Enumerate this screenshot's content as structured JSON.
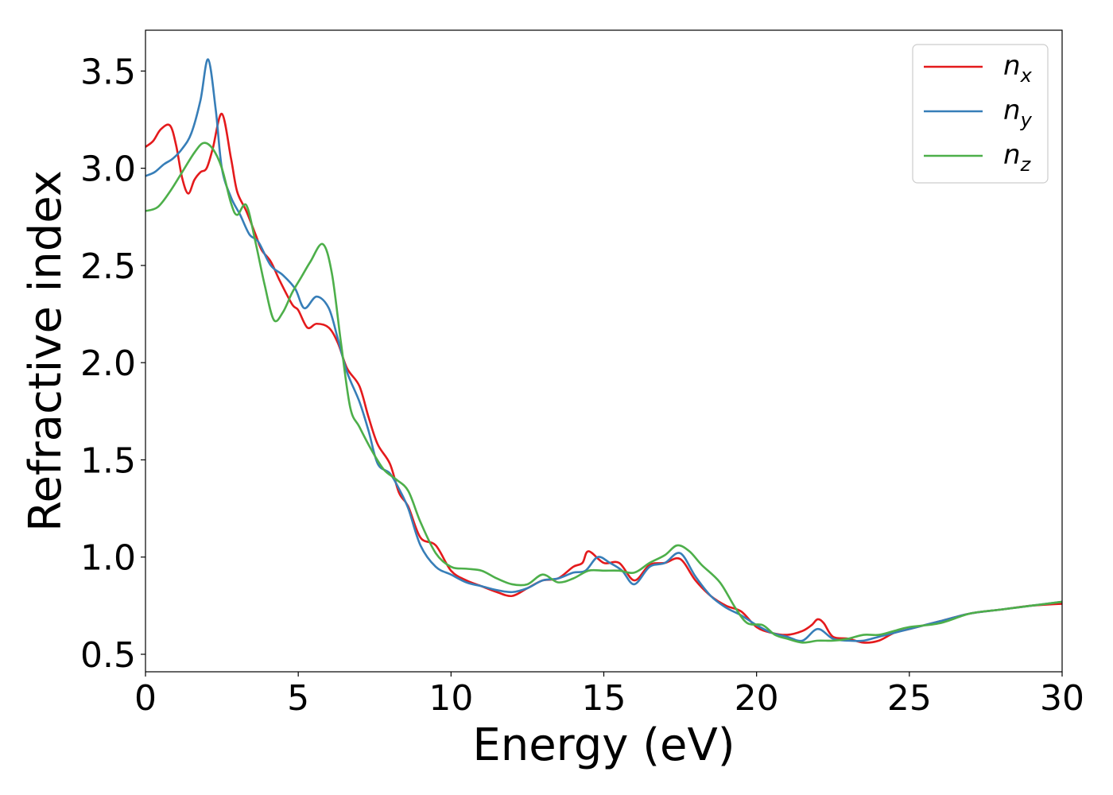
{
  "chart_data": {
    "type": "line",
    "title": "",
    "xlabel": "Energy (eV)",
    "ylabel": "Refractive index",
    "xlim": [
      0,
      30
    ],
    "ylim": [
      0.41,
      3.71
    ],
    "xticks": [
      0,
      5,
      10,
      15,
      20,
      25,
      30
    ],
    "xtick_labels": [
      "0",
      "5",
      "10",
      "15",
      "20",
      "25",
      "30"
    ],
    "yticks": [
      0.5,
      1.0,
      1.5,
      2.0,
      2.5,
      3.0,
      3.5
    ],
    "ytick_labels": [
      "0.5",
      "1.0",
      "1.5",
      "2.0",
      "2.5",
      "3.0",
      "3.5"
    ],
    "grid": false,
    "legend_position": "top-right",
    "series": [
      {
        "name": "n",
        "subscript": "x",
        "color": "#e41a1c",
        "points": [
          [
            0,
            3.11
          ],
          [
            0.25,
            3.14
          ],
          [
            0.5,
            3.2
          ],
          [
            0.8,
            3.22
          ],
          [
            1.0,
            3.12
          ],
          [
            1.2,
            2.95
          ],
          [
            1.4,
            2.87
          ],
          [
            1.6,
            2.94
          ],
          [
            1.8,
            2.98
          ],
          [
            2.0,
            3.0
          ],
          [
            2.2,
            3.1
          ],
          [
            2.5,
            3.28
          ],
          [
            2.8,
            3.05
          ],
          [
            3.0,
            2.88
          ],
          [
            3.3,
            2.78
          ],
          [
            3.6,
            2.66
          ],
          [
            3.8,
            2.58
          ],
          [
            4.1,
            2.52
          ],
          [
            4.4,
            2.42
          ],
          [
            4.8,
            2.3
          ],
          [
            5.0,
            2.27
          ],
          [
            5.3,
            2.18
          ],
          [
            5.6,
            2.2
          ],
          [
            6.0,
            2.18
          ],
          [
            6.3,
            2.1
          ],
          [
            6.6,
            1.97
          ],
          [
            7.0,
            1.88
          ],
          [
            7.3,
            1.72
          ],
          [
            7.6,
            1.58
          ],
          [
            8.0,
            1.48
          ],
          [
            8.3,
            1.33
          ],
          [
            8.6,
            1.26
          ],
          [
            9.0,
            1.1
          ],
          [
            9.5,
            1.06
          ],
          [
            10.0,
            0.93
          ],
          [
            10.5,
            0.88
          ],
          [
            11.0,
            0.85
          ],
          [
            11.5,
            0.82
          ],
          [
            12.0,
            0.8
          ],
          [
            12.5,
            0.84
          ],
          [
            13.0,
            0.88
          ],
          [
            13.5,
            0.89
          ],
          [
            14.0,
            0.95
          ],
          [
            14.3,
            0.97
          ],
          [
            14.5,
            1.03
          ],
          [
            15.0,
            0.97
          ],
          [
            15.5,
            0.97
          ],
          [
            16.0,
            0.88
          ],
          [
            16.5,
            0.96
          ],
          [
            17.0,
            0.97
          ],
          [
            17.5,
            0.99
          ],
          [
            18.0,
            0.88
          ],
          [
            18.5,
            0.8
          ],
          [
            19.0,
            0.75
          ],
          [
            19.5,
            0.72
          ],
          [
            20.0,
            0.64
          ],
          [
            20.5,
            0.61
          ],
          [
            21.0,
            0.6
          ],
          [
            21.5,
            0.62
          ],
          [
            21.8,
            0.65
          ],
          [
            22.0,
            0.68
          ],
          [
            22.2,
            0.66
          ],
          [
            22.5,
            0.59
          ],
          [
            23.0,
            0.58
          ],
          [
            23.5,
            0.56
          ],
          [
            24.0,
            0.57
          ],
          [
            24.5,
            0.61
          ],
          [
            25.0,
            0.63
          ],
          [
            26.0,
            0.67
          ],
          [
            27.0,
            0.71
          ],
          [
            28.0,
            0.73
          ],
          [
            29.0,
            0.75
          ],
          [
            30.0,
            0.76
          ]
        ]
      },
      {
        "name": "n",
        "subscript": "y",
        "color": "#377eb8",
        "points": [
          [
            0,
            2.96
          ],
          [
            0.3,
            2.98
          ],
          [
            0.6,
            3.02
          ],
          [
            0.9,
            3.05
          ],
          [
            1.2,
            3.1
          ],
          [
            1.5,
            3.18
          ],
          [
            1.8,
            3.35
          ],
          [
            2.05,
            3.56
          ],
          [
            2.3,
            3.3
          ],
          [
            2.5,
            3.0
          ],
          [
            2.8,
            2.85
          ],
          [
            3.1,
            2.76
          ],
          [
            3.4,
            2.66
          ],
          [
            3.7,
            2.62
          ],
          [
            4.1,
            2.5
          ],
          [
            4.5,
            2.45
          ],
          [
            4.9,
            2.38
          ],
          [
            5.2,
            2.28
          ],
          [
            5.6,
            2.34
          ],
          [
            6.0,
            2.28
          ],
          [
            6.3,
            2.12
          ],
          [
            6.6,
            1.95
          ],
          [
            7.0,
            1.8
          ],
          [
            7.3,
            1.65
          ],
          [
            7.6,
            1.48
          ],
          [
            8.0,
            1.43
          ],
          [
            8.3,
            1.35
          ],
          [
            8.6,
            1.25
          ],
          [
            9.0,
            1.06
          ],
          [
            9.5,
            0.95
          ],
          [
            10.0,
            0.91
          ],
          [
            10.5,
            0.87
          ],
          [
            11.0,
            0.85
          ],
          [
            11.5,
            0.83
          ],
          [
            12.0,
            0.82
          ],
          [
            12.5,
            0.84
          ],
          [
            13.0,
            0.88
          ],
          [
            13.5,
            0.89
          ],
          [
            14.0,
            0.92
          ],
          [
            14.4,
            0.93
          ],
          [
            14.8,
            1.0
          ],
          [
            15.2,
            0.97
          ],
          [
            15.6,
            0.93
          ],
          [
            16.0,
            0.86
          ],
          [
            16.5,
            0.95
          ],
          [
            17.0,
            0.97
          ],
          [
            17.5,
            1.02
          ],
          [
            18.0,
            0.9
          ],
          [
            18.5,
            0.8
          ],
          [
            19.0,
            0.74
          ],
          [
            19.5,
            0.7
          ],
          [
            20.0,
            0.65
          ],
          [
            20.5,
            0.61
          ],
          [
            21.0,
            0.59
          ],
          [
            21.5,
            0.57
          ],
          [
            22.0,
            0.63
          ],
          [
            22.5,
            0.58
          ],
          [
            23.0,
            0.57
          ],
          [
            23.5,
            0.57
          ],
          [
            24.0,
            0.59
          ],
          [
            25.0,
            0.63
          ],
          [
            26.0,
            0.67
          ],
          [
            27.0,
            0.71
          ],
          [
            28.0,
            0.73
          ],
          [
            29.0,
            0.75
          ],
          [
            30.0,
            0.77
          ]
        ]
      },
      {
        "name": "n",
        "subscript": "z",
        "color": "#4daf4a",
        "points": [
          [
            0,
            2.78
          ],
          [
            0.4,
            2.8
          ],
          [
            0.8,
            2.88
          ],
          [
            1.2,
            2.98
          ],
          [
            1.6,
            3.08
          ],
          [
            1.9,
            3.13
          ],
          [
            2.2,
            3.1
          ],
          [
            2.5,
            3.0
          ],
          [
            2.8,
            2.82
          ],
          [
            3.0,
            2.76
          ],
          [
            3.3,
            2.81
          ],
          [
            3.6,
            2.62
          ],
          [
            3.9,
            2.4
          ],
          [
            4.2,
            2.22
          ],
          [
            4.5,
            2.26
          ],
          [
            4.8,
            2.36
          ],
          [
            5.1,
            2.44
          ],
          [
            5.4,
            2.52
          ],
          [
            5.8,
            2.61
          ],
          [
            6.1,
            2.46
          ],
          [
            6.4,
            2.1
          ],
          [
            6.7,
            1.77
          ],
          [
            7.0,
            1.67
          ],
          [
            7.4,
            1.55
          ],
          [
            7.8,
            1.45
          ],
          [
            8.2,
            1.4
          ],
          [
            8.6,
            1.34
          ],
          [
            9.0,
            1.18
          ],
          [
            9.5,
            1.02
          ],
          [
            10.0,
            0.95
          ],
          [
            10.5,
            0.94
          ],
          [
            11.0,
            0.93
          ],
          [
            11.5,
            0.89
          ],
          [
            12.0,
            0.86
          ],
          [
            12.5,
            0.86
          ],
          [
            13.0,
            0.91
          ],
          [
            13.5,
            0.87
          ],
          [
            14.0,
            0.89
          ],
          [
            14.5,
            0.93
          ],
          [
            15.0,
            0.93
          ],
          [
            15.5,
            0.93
          ],
          [
            16.0,
            0.92
          ],
          [
            16.5,
            0.97
          ],
          [
            17.0,
            1.01
          ],
          [
            17.4,
            1.06
          ],
          [
            17.8,
            1.03
          ],
          [
            18.2,
            0.96
          ],
          [
            18.8,
            0.87
          ],
          [
            19.3,
            0.74
          ],
          [
            19.7,
            0.66
          ],
          [
            20.2,
            0.65
          ],
          [
            20.6,
            0.6
          ],
          [
            21.0,
            0.58
          ],
          [
            21.5,
            0.56
          ],
          [
            22.0,
            0.57
          ],
          [
            22.5,
            0.57
          ],
          [
            23.0,
            0.58
          ],
          [
            23.5,
            0.6
          ],
          [
            24.0,
            0.6
          ],
          [
            24.5,
            0.62
          ],
          [
            25.0,
            0.64
          ],
          [
            26.0,
            0.66
          ],
          [
            27.0,
            0.71
          ],
          [
            28.0,
            0.73
          ],
          [
            29.0,
            0.75
          ],
          [
            30.0,
            0.77
          ]
        ]
      }
    ]
  }
}
